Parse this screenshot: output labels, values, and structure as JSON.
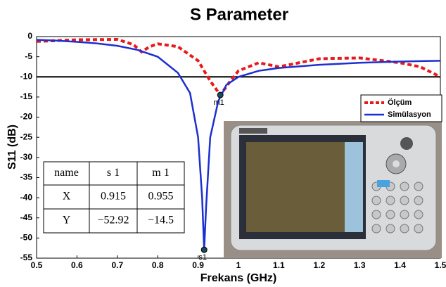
{
  "chart_data": {
    "type": "line",
    "title": "S Parameter",
    "x_label": "Frekans (GHz)",
    "y_label": "S11 (dB)",
    "xlim": [
      0.5,
      1.5
    ],
    "ylim": [
      -55,
      0
    ],
    "xticks": [
      0.5,
      0.6,
      0.7,
      0.8,
      0.9,
      1,
      1.1,
      1.2,
      1.3,
      1.4,
      1.5
    ],
    "yticks": [
      0,
      -5,
      -10,
      -15,
      -20,
      -25,
      -30,
      -35,
      -40,
      -45,
      -50,
      -55
    ],
    "grid": false,
    "legend": "right",
    "series": [
      {
        "name": "Ölçüm",
        "color": "#e8191c",
        "dash": true,
        "x": [
          0.5,
          0.6,
          0.7,
          0.74,
          0.76,
          0.78,
          0.8,
          0.85,
          0.9,
          0.93,
          0.955,
          0.98,
          1.0,
          1.05,
          1.1,
          1.15,
          1.2,
          1.3,
          1.4,
          1.45,
          1.5
        ],
        "values": [
          -1.2,
          -0.8,
          -0.7,
          -2,
          -3.8,
          -2.5,
          -1.8,
          -2.5,
          -6,
          -11,
          -14.5,
          -11,
          -8.5,
          -6.5,
          -7.5,
          -6.5,
          -5.5,
          -5.3,
          -6.5,
          -7.5,
          -10
        ]
      },
      {
        "name": "Simülasyon",
        "color": "#1c2fd0",
        "dash": false,
        "x": [
          0.5,
          0.55,
          0.6,
          0.65,
          0.7,
          0.75,
          0.8,
          0.85,
          0.88,
          0.9,
          0.91,
          0.915,
          0.92,
          0.93,
          0.95,
          0.97,
          1.0,
          1.05,
          1.1,
          1.2,
          1.3,
          1.4,
          1.45,
          1.5
        ],
        "values": [
          -0.8,
          -1,
          -1.3,
          -1.7,
          -2.3,
          -3.3,
          -5,
          -9,
          -14,
          -25,
          -40,
          -52.92,
          -42,
          -25,
          -16,
          -12,
          -10,
          -8.5,
          -7.8,
          -7,
          -6.5,
          -6.2,
          -6.1,
          -6
        ]
      }
    ],
    "hline": {
      "value": -10,
      "color": "#000000"
    },
    "markers": [
      {
        "label": "m1",
        "x": 0.955,
        "y": -14.5
      },
      {
        "label": "s1",
        "x": 0.915,
        "y": -52.92
      }
    ],
    "table": {
      "header": [
        "name",
        "s 1",
        "m 1"
      ],
      "rows": [
        [
          "X",
          "0.915",
          "0.955"
        ],
        [
          "Y",
          "−52.92",
          "−14.5"
        ]
      ]
    }
  }
}
